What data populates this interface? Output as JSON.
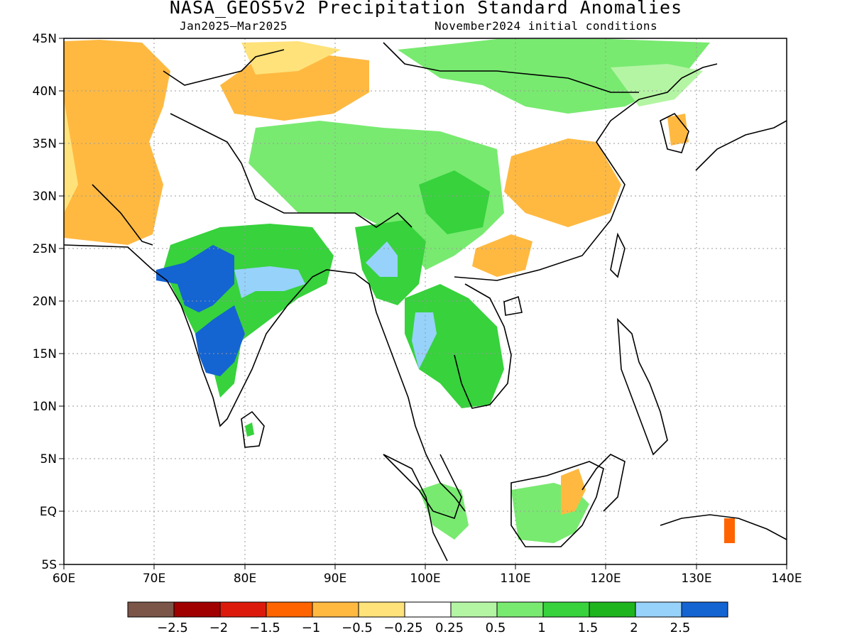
{
  "title": "NASA_GEOS5v2 Precipitation Standard Anomalies",
  "period": "Jan2025–Mar2025",
  "initial_conditions": "November2024 initial conditions",
  "axes": {
    "lon_labels": [
      "60E",
      "70E",
      "80E",
      "90E",
      "100E",
      "110E",
      "120E",
      "130E",
      "140E"
    ],
    "lat_labels": [
      "45N",
      "40N",
      "35N",
      "30N",
      "25N",
      "20N",
      "15N",
      "10N",
      "5N",
      "EQ",
      "5S"
    ]
  },
  "colorbar": {
    "colors": [
      "#7a5548",
      "#a00000",
      "#dc1a0c",
      "#ff6400",
      "#ffb941",
      "#ffe27a",
      "#ffffff",
      "#b4f5a4",
      "#78ea70",
      "#37d23c",
      "#1eb41e",
      "#96d2fa",
      "#1464d2"
    ],
    "labels": [
      "−2.5",
      "−2",
      "−1.5",
      "−1",
      "−0.5",
      "−0.25",
      "0.25",
      "0.5",
      "1",
      "1.5",
      "2",
      "2.5"
    ]
  }
}
